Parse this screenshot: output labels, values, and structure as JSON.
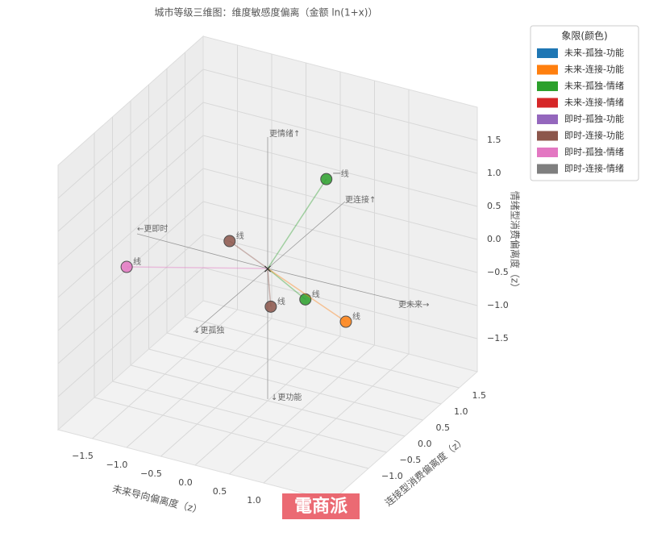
{
  "chart_data": {
    "type": "scatter3d",
    "title": "城市等级三维图：维度敏感度偏离（金额 ln(1+x)）",
    "xlabel": "未来导向偏离度（z）",
    "ylabel": "连接型消费偏离度（z）",
    "zlabel": "情绪型消费偏离度（z）",
    "xlim": [
      -2,
      2
    ],
    "ylim": [
      -2,
      2
    ],
    "zlim": [
      -2,
      2
    ],
    "xticks": [
      {
        "value": -1.5,
        "label": "−1.5"
      },
      {
        "value": -1,
        "label": "−1.0"
      },
      {
        "value": -0.5,
        "label": "−0.5"
      },
      {
        "value": 0,
        "label": "0.0"
      },
      {
        "value": 0.5,
        "label": "0.5"
      },
      {
        "value": 1,
        "label": "1.0"
      }
    ],
    "yticks": [
      {
        "value": -1,
        "label": "−1.0"
      },
      {
        "value": -0.5,
        "label": "−0.5"
      },
      {
        "value": 0,
        "label": "0.0"
      },
      {
        "value": 0.5,
        "label": "0.5"
      },
      {
        "value": 1,
        "label": "1.0"
      },
      {
        "value": 1.5,
        "label": "1.5"
      }
    ],
    "zticks": [
      {
        "value": -1.5,
        "label": "−1.5"
      },
      {
        "value": -1,
        "label": "−1.0"
      },
      {
        "value": -0.5,
        "label": "−0.5"
      },
      {
        "value": 0,
        "label": "0.0"
      },
      {
        "value": 0.5,
        "label": "0.5"
      },
      {
        "value": 1,
        "label": "1.0"
      },
      {
        "value": 1.5,
        "label": "1.5"
      }
    ],
    "legend_title": "象限(颜色)",
    "series": [
      {
        "name": "未来-孤独-功能",
        "color": "#1f77b4"
      },
      {
        "name": "未来-连接-功能",
        "color": "#ff7f0e"
      },
      {
        "name": "未来-孤独-情绪",
        "color": "#2ca02c"
      },
      {
        "name": "未来-连接-情绪",
        "color": "#d62728"
      },
      {
        "name": "即时-孤独-功能",
        "color": "#9467bd"
      },
      {
        "name": "即时-连接-功能",
        "color": "#8c564b"
      },
      {
        "name": "即时-孤独-情绪",
        "color": "#e377c2"
      },
      {
        "name": "即时-连接-情绪",
        "color": "#7f7f7f"
      }
    ],
    "points": [
      {
        "label": "一线",
        "color": "#2ca02c",
        "x": 0.3,
        "y": 1.05,
        "z": 0.92
      },
      {
        "label": "线",
        "color": "#8c564b",
        "x": -0.82,
        "y": 0.5,
        "z": -0.05
      },
      {
        "label": "线",
        "color": "#e377c2",
        "x": -1.74,
        "y": -0.6,
        "z": -0.15
      },
      {
        "label": "线",
        "color": "#2ca02c",
        "x": 0.55,
        "y": 0,
        "z": -0.32
      },
      {
        "label": "线",
        "color": "#ff7f0e",
        "x": 1.3,
        "y": -0.3,
        "z": -0.31
      },
      {
        "label": "线",
        "color": "#8c564b",
        "x": 0.31,
        "y": -0.5,
        "z": -0.25
      }
    ],
    "annotations": [
      "更情绪↑",
      "更连接↑",
      "←更即时",
      "更未来→",
      "↓更孤独",
      "↓更功能"
    ],
    "watermark": "電商派"
  }
}
